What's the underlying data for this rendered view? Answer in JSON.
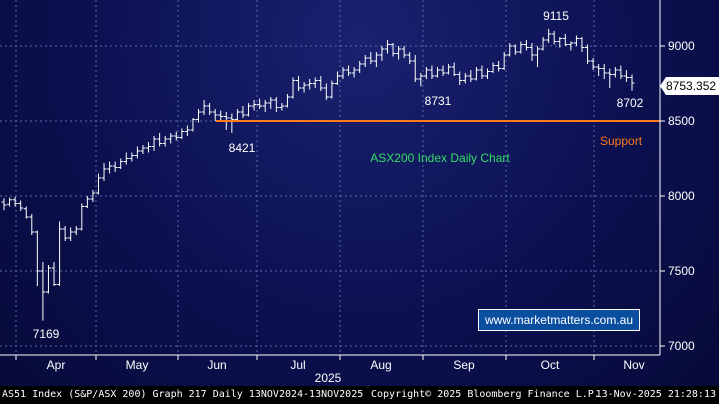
{
  "chart_data": {
    "type": "ohlc",
    "title": "ASX200 Index Daily Chart",
    "y_ticks": [
      "9000",
      "8500",
      "8000",
      "7500",
      "7000"
    ],
    "ylim": [
      6980,
      9200
    ],
    "x_months": [
      "Apr",
      "May",
      "Jun",
      "Jul",
      "Aug",
      "Sep",
      "Oct",
      "Nov"
    ],
    "year_label": "2025",
    "support_level": 8500,
    "support_label": "Support",
    "last_price": "8753.352",
    "annotations": [
      {
        "label": "7169",
        "x": "2025-04-07",
        "y": 7169
      },
      {
        "label": "8421",
        "x": "2025-06-05",
        "y": 8421
      },
      {
        "label": "8731",
        "x": "2025-08-26",
        "y": 8731
      },
      {
        "label": "9115",
        "x": "2025-10-01",
        "y": 9115
      },
      {
        "label": "8702",
        "x": "2025-11-10",
        "y": 8702
      }
    ],
    "series": [
      {
        "values": [
          [
            7960,
            7985,
            7905,
            7940
          ],
          [
            7945,
            7990,
            7930,
            7975
          ],
          [
            7975,
            7995,
            7930,
            7950
          ],
          [
            7950,
            7970,
            7900,
            7920
          ],
          [
            7915,
            7930,
            7850,
            7860
          ],
          [
            7860,
            7880,
            7740,
            7760
          ],
          [
            7760,
            7770,
            7400,
            7500
          ],
          [
            7500,
            7560,
            7169,
            7360
          ],
          [
            7360,
            7540,
            7350,
            7520
          ],
          [
            7520,
            7560,
            7400,
            7410
          ],
          [
            7410,
            7830,
            7400,
            7780
          ],
          [
            7780,
            7800,
            7700,
            7720
          ],
          [
            7720,
            7790,
            7700,
            7760
          ],
          [
            7760,
            7800,
            7740,
            7780
          ],
          [
            7780,
            7950,
            7770,
            7930
          ],
          [
            7930,
            8000,
            7920,
            7980
          ],
          [
            7980,
            8040,
            7960,
            8020
          ],
          [
            8020,
            8150,
            8010,
            8120
          ],
          [
            8120,
            8220,
            8100,
            8180
          ],
          [
            8180,
            8230,
            8150,
            8200
          ],
          [
            8200,
            8230,
            8160,
            8190
          ],
          [
            8190,
            8250,
            8180,
            8230
          ],
          [
            8230,
            8290,
            8210,
            8250
          ],
          [
            8250,
            8290,
            8230,
            8270
          ],
          [
            8270,
            8330,
            8250,
            8300
          ],
          [
            8300,
            8340,
            8280,
            8320
          ],
          [
            8320,
            8360,
            8290,
            8330
          ],
          [
            8330,
            8400,
            8300,
            8380
          ],
          [
            8380,
            8420,
            8330,
            8350
          ],
          [
            8350,
            8400,
            8330,
            8380
          ],
          [
            8380,
            8420,
            8350,
            8400
          ],
          [
            8400,
            8430,
            8370,
            8390
          ],
          [
            8390,
            8450,
            8380,
            8430
          ],
          [
            8430,
            8470,
            8400,
            8440
          ],
          [
            8440,
            8520,
            8430,
            8510
          ],
          [
            8510,
            8580,
            8490,
            8560
          ],
          [
            8560,
            8640,
            8540,
            8600
          ],
          [
            8600,
            8620,
            8540,
            8560
          ],
          [
            8560,
            8580,
            8500,
            8540
          ],
          [
            8540,
            8570,
            8500,
            8530
          ],
          [
            8530,
            8560,
            8440,
            8520
          ],
          [
            8520,
            8550,
            8421,
            8510
          ],
          [
            8510,
            8580,
            8500,
            8560
          ],
          [
            8560,
            8600,
            8520,
            8540
          ],
          [
            8540,
            8620,
            8530,
            8600
          ],
          [
            8600,
            8640,
            8570,
            8610
          ],
          [
            8610,
            8650,
            8580,
            8600
          ],
          [
            8600,
            8640,
            8560,
            8620
          ],
          [
            8620,
            8660,
            8580,
            8640
          ],
          [
            8640,
            8660,
            8560,
            8590
          ],
          [
            8590,
            8620,
            8570,
            8600
          ],
          [
            8600,
            8680,
            8590,
            8660
          ],
          [
            8660,
            8790,
            8650,
            8770
          ],
          [
            8770,
            8800,
            8700,
            8720
          ],
          [
            8720,
            8760,
            8690,
            8740
          ],
          [
            8740,
            8780,
            8710,
            8750
          ],
          [
            8750,
            8790,
            8720,
            8770
          ],
          [
            8770,
            8800,
            8700,
            8720
          ],
          [
            8720,
            8750,
            8640,
            8660
          ],
          [
            8660,
            8770,
            8650,
            8750
          ],
          [
            8750,
            8830,
            8740,
            8800
          ],
          [
            8800,
            8860,
            8780,
            8840
          ],
          [
            8840,
            8870,
            8800,
            8820
          ],
          [
            8820,
            8860,
            8790,
            8840
          ],
          [
            8840,
            8900,
            8820,
            8880
          ],
          [
            8880,
            8940,
            8860,
            8920
          ],
          [
            8920,
            8960,
            8880,
            8900
          ],
          [
            8900,
            8960,
            8860,
            8940
          ],
          [
            8940,
            9000,
            8900,
            8980
          ],
          [
            8980,
            9040,
            8950,
            9010
          ],
          [
            9010,
            9020,
            8930,
            8950
          ],
          [
            8950,
            9000,
            8910,
            8980
          ],
          [
            8980,
            9000,
            8920,
            8940
          ],
          [
            8940,
            8960,
            8880,
            8900
          ],
          [
            8900,
            8940,
            8760,
            8780
          ],
          [
            8780,
            8820,
            8731,
            8800
          ],
          [
            8800,
            8860,
            8780,
            8840
          ],
          [
            8840,
            8870,
            8780,
            8800
          ],
          [
            8800,
            8860,
            8790,
            8840
          ],
          [
            8840,
            8870,
            8800,
            8820
          ],
          [
            8820,
            8880,
            8810,
            8860
          ],
          [
            8860,
            8890,
            8800,
            8810
          ],
          [
            8810,
            8830,
            8740,
            8770
          ],
          [
            8770,
            8820,
            8750,
            8800
          ],
          [
            8800,
            8840,
            8760,
            8780
          ],
          [
            8780,
            8860,
            8770,
            8840
          ],
          [
            8840,
            8870,
            8780,
            8800
          ],
          [
            8800,
            8850,
            8780,
            8830
          ],
          [
            8830,
            8890,
            8820,
            8870
          ],
          [
            8870,
            8900,
            8830,
            8850
          ],
          [
            8850,
            8960,
            8840,
            8940
          ],
          [
            8940,
            9020,
            8930,
            9000
          ],
          [
            9000,
            9010,
            8940,
            8960
          ],
          [
            8960,
            9030,
            8950,
            9010
          ],
          [
            9010,
            9040,
            8970,
            8990
          ],
          [
            8990,
            9020,
            8900,
            8940
          ],
          [
            8940,
            9000,
            8860,
            8980
          ],
          [
            8980,
            9060,
            8970,
            9040
          ],
          [
            9040,
            9115,
            9020,
            9080
          ],
          [
            9080,
            9100,
            9010,
            9030
          ],
          [
            9030,
            9060,
            8990,
            9050
          ],
          [
            9050,
            9080,
            9000,
            9010
          ],
          [
            9010,
            9030,
            8970,
            9020
          ],
          [
            9020,
            9070,
            9000,
            9050
          ],
          [
            9050,
            9060,
            8960,
            8990
          ],
          [
            8990,
            9010,
            8880,
            8900
          ],
          [
            8900,
            8920,
            8840,
            8860
          ],
          [
            8860,
            8880,
            8800,
            8850
          ],
          [
            8850,
            8880,
            8780,
            8820
          ],
          [
            8820,
            8850,
            8720,
            8810
          ],
          [
            8810,
            8860,
            8790,
            8840
          ],
          [
            8840,
            8870,
            8780,
            8800
          ],
          [
            8800,
            8840,
            8760,
            8790
          ],
          [
            8790,
            8810,
            8702,
            8753
          ]
        ]
      }
    ]
  },
  "footer": {
    "left": "AS51 Index (S&P/ASX 200) Graph 217 Daily 13NOV2024-13NOV2025",
    "center": "Copyright© 2025 Bloomberg Finance L.P.",
    "right": "13-Nov-2025 21:28:13"
  },
  "watermark": "www.marketmatters.com.au",
  "colors": {
    "support": "#ff7a1a",
    "title": "#33dd66",
    "last_price_box": "#ffffff"
  }
}
